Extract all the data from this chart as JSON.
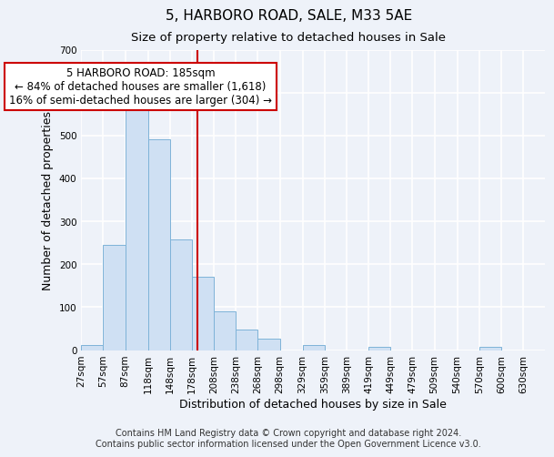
{
  "title": "5, HARBORO ROAD, SALE, M33 5AE",
  "subtitle": "Size of property relative to detached houses in Sale",
  "xlabel": "Distribution of detached houses by size in Sale",
  "ylabel": "Number of detached properties",
  "bar_left_edges": [
    27,
    57,
    87,
    118,
    148,
    178,
    208,
    238,
    268,
    298,
    329,
    359,
    389,
    419,
    449,
    479,
    509,
    540,
    570,
    600
  ],
  "bar_heights": [
    12,
    245,
    573,
    492,
    258,
    170,
    91,
    47,
    27,
    0,
    12,
    0,
    0,
    7,
    0,
    0,
    0,
    0,
    7,
    0
  ],
  "bar_widths": [
    30,
    30,
    31,
    30,
    30,
    30,
    30,
    30,
    30,
    31,
    30,
    30,
    30,
    30,
    30,
    30,
    31,
    30,
    30,
    30
  ],
  "bar_color": "#cfe0f3",
  "bar_edgecolor": "#7eb3d8",
  "vline_x": 185,
  "vline_color": "#cc0000",
  "annotation_title": "5 HARBORO ROAD: 185sqm",
  "annotation_line1": "← 84% of detached houses are smaller (1,618)",
  "annotation_line2": "16% of semi-detached houses are larger (304) →",
  "annotation_box_facecolor": "white",
  "annotation_box_edgecolor": "#cc0000",
  "xlim": [
    27,
    660
  ],
  "ylim": [
    0,
    700
  ],
  "yticks": [
    0,
    100,
    200,
    300,
    400,
    500,
    600,
    700
  ],
  "xtick_labels": [
    "27sqm",
    "57sqm",
    "87sqm",
    "118sqm",
    "148sqm",
    "178sqm",
    "208sqm",
    "238sqm",
    "268sqm",
    "298sqm",
    "329sqm",
    "359sqm",
    "389sqm",
    "419sqm",
    "449sqm",
    "479sqm",
    "509sqm",
    "540sqm",
    "570sqm",
    "600sqm",
    "630sqm"
  ],
  "xtick_positions": [
    27,
    57,
    87,
    118,
    148,
    178,
    208,
    238,
    268,
    298,
    329,
    359,
    389,
    419,
    449,
    479,
    509,
    540,
    570,
    600,
    630
  ],
  "footer_line1": "Contains HM Land Registry data © Crown copyright and database right 2024.",
  "footer_line2": "Contains public sector information licensed under the Open Government Licence v3.0.",
  "bg_color": "#eef2f9",
  "plot_bg_color": "#eef2f9",
  "grid_color": "#ffffff",
  "title_fontsize": 11,
  "subtitle_fontsize": 9.5,
  "axis_label_fontsize": 9,
  "tick_fontsize": 7.5,
  "footer_fontsize": 7,
  "ann_fontsize": 8.5
}
